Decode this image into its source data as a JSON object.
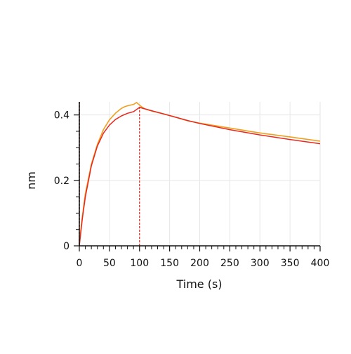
{
  "chart_data": {
    "type": "line",
    "xlabel": "Time (s)",
    "ylabel": "nm",
    "xlim": [
      0,
      400
    ],
    "ylim": [
      0,
      0.44
    ],
    "x_ticks": [
      0,
      50,
      100,
      150,
      200,
      250,
      300,
      350,
      400
    ],
    "x_tick_labels": [
      "0",
      "50",
      "100",
      "150",
      "200",
      "250",
      "300",
      "350",
      "400"
    ],
    "y_ticks": [
      0,
      0.2,
      0.4
    ],
    "y_tick_labels": [
      "0",
      "0.2",
      "0.4"
    ],
    "grid": true,
    "dissociation_start": 100,
    "series": [
      {
        "color": "#f0a020",
        "style": "measured",
        "x": [
          0,
          5,
          10,
          20,
          30,
          40,
          50,
          60,
          70,
          75,
          80,
          90,
          95,
          100,
          105,
          110,
          120,
          140,
          160,
          180,
          200,
          250,
          300,
          350,
          400
        ],
        "y": [
          0.01,
          0.09,
          0.16,
          0.25,
          0.31,
          0.355,
          0.385,
          0.405,
          0.42,
          0.425,
          0.428,
          0.432,
          0.438,
          0.43,
          0.423,
          0.418,
          0.412,
          0.403,
          0.393,
          0.382,
          0.375,
          0.36,
          0.345,
          0.333,
          0.32
        ]
      },
      {
        "color": "#e8281e",
        "style": "fit",
        "x": [
          0,
          5,
          10,
          20,
          30,
          40,
          50,
          60,
          70,
          80,
          90,
          100,
          120,
          140,
          160,
          180,
          200,
          250,
          300,
          350,
          400
        ],
        "y": [
          0,
          0.083,
          0.15,
          0.245,
          0.305,
          0.344,
          0.369,
          0.386,
          0.397,
          0.405,
          0.41,
          0.423,
          0.413,
          0.403,
          0.393,
          0.383,
          0.374,
          0.355,
          0.339,
          0.325,
          0.312
        ]
      }
    ],
    "colors": {
      "axis": "#111111",
      "grid": "#e6e6e6",
      "left_marker": "#7a1f1f",
      "dissociation_line": "#e8281e"
    }
  }
}
